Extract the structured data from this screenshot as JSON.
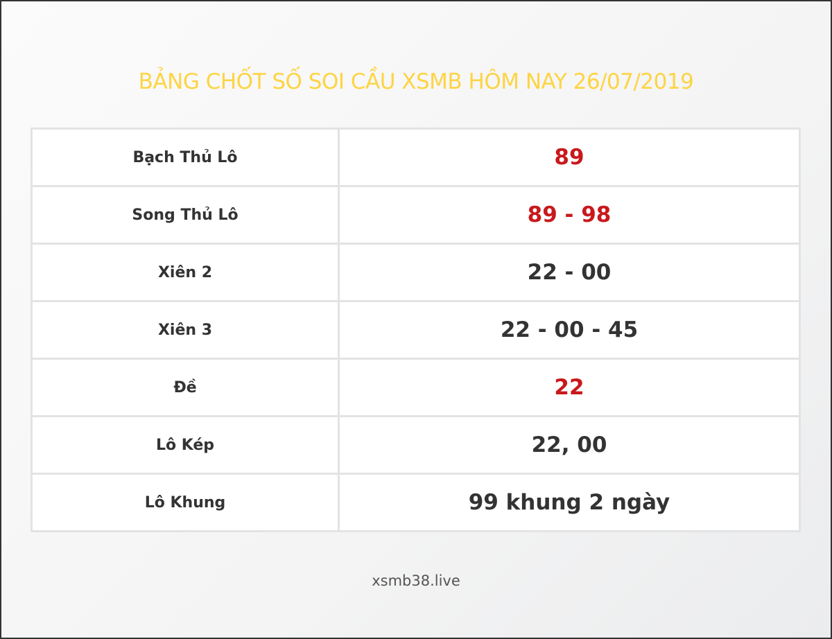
{
  "title": "BẢNG CHỐT SỐ SOI CẦU XSMB HÔM NAY 26/07/2019",
  "colors": {
    "title": "#fdd443",
    "highlight": "#c8191c",
    "normal": "#333333"
  },
  "rows": [
    {
      "label": "Bạch Thủ Lô",
      "value": "89",
      "highlight": true
    },
    {
      "label": "Song Thủ Lô",
      "value": "89 - 98",
      "highlight": true
    },
    {
      "label": "Xiên 2",
      "value": "22 - 00",
      "highlight": false
    },
    {
      "label": "Xiên 3",
      "value": "22 - 00 - 45",
      "highlight": false
    },
    {
      "label": "Đề",
      "value": "22",
      "highlight": true
    },
    {
      "label": "Lô Kép",
      "value": "22, 00",
      "highlight": false
    },
    {
      "label": "Lô Khung",
      "value": "99 khung 2 ngày",
      "highlight": false
    }
  ],
  "footer": "xsmb38.live"
}
